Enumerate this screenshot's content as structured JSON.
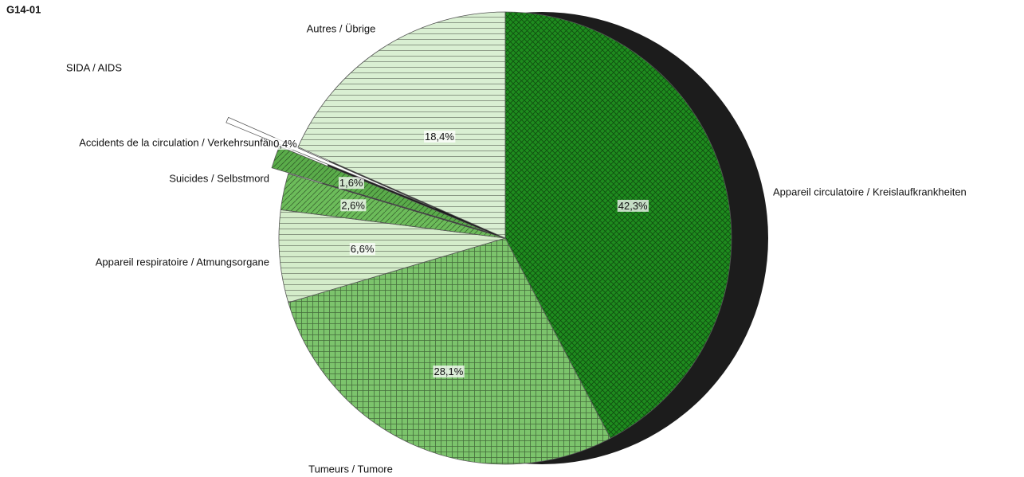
{
  "chart_data": {
    "type": "pie",
    "title": "G14-01",
    "categories": [
      "Appareil circulatoire / Kreislaufkrankheiten",
      "Tumeurs / Tumore",
      "Appareil respiratoire / Atmungsorgane",
      "Suicides / Selbstmord",
      "Accidents de la circulation / Verkehrsunfälle",
      "SIDA / AIDS",
      "Autres / Übrige"
    ],
    "values": [
      42.3,
      28.1,
      6.6,
      2.6,
      1.6,
      0.4,
      18.4
    ],
    "value_labels": [
      "42,3%",
      "28,1%",
      "6,6%",
      "2,6%",
      "1,6%",
      "0,4%",
      "18,4%"
    ],
    "colors": [
      "#1e8c1e",
      "#7cc46c",
      "#d4ecca",
      "#6cbc5a",
      "#5aac4a",
      "#ffffff",
      "#d9efd2"
    ]
  }
}
